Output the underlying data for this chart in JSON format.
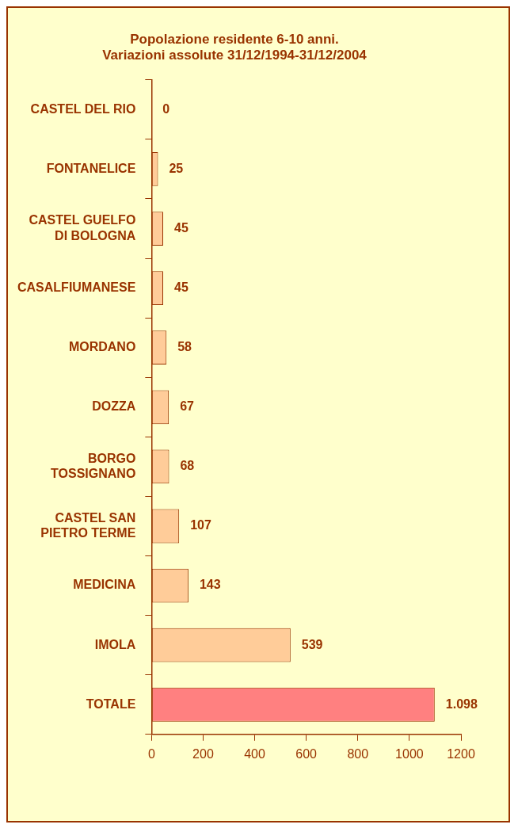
{
  "chart_data": {
    "type": "bar",
    "orientation": "horizontal",
    "title": [
      "Popolazione residente 6-10 anni.",
      "Variazioni assolute 31/12/1994-31/12/2004"
    ],
    "categories": [
      "CASTEL DEL RIO",
      "FONTANELICE",
      "CASTEL GUELFO DI BOLOGNA",
      "CASALFIUMANESE",
      "MORDANO",
      "DOZZA",
      "BORGO TOSSIGNANO",
      "CASTEL SAN PIETRO TERME",
      "MEDICINA",
      "IMOLA",
      "TOTALE"
    ],
    "values": [
      0,
      25,
      45,
      45,
      58,
      67,
      68,
      107,
      143,
      539,
      1098
    ],
    "value_labels": [
      "0",
      "25",
      "45",
      "45",
      "58",
      "67",
      "68",
      "107",
      "143",
      "539",
      "1.098"
    ],
    "colors": [
      "#ffcc99",
      "#ffcc99",
      "#ffcc99",
      "#ffcc99",
      "#ffcc99",
      "#ffcc99",
      "#ffcc99",
      "#ffcc99",
      "#ffcc99",
      "#ffcc99",
      "#ff8080"
    ],
    "xlim": [
      0,
      1200
    ],
    "xticks": [
      0,
      200,
      400,
      600,
      800,
      1000,
      1200
    ],
    "grid": false,
    "legend": false
  }
}
